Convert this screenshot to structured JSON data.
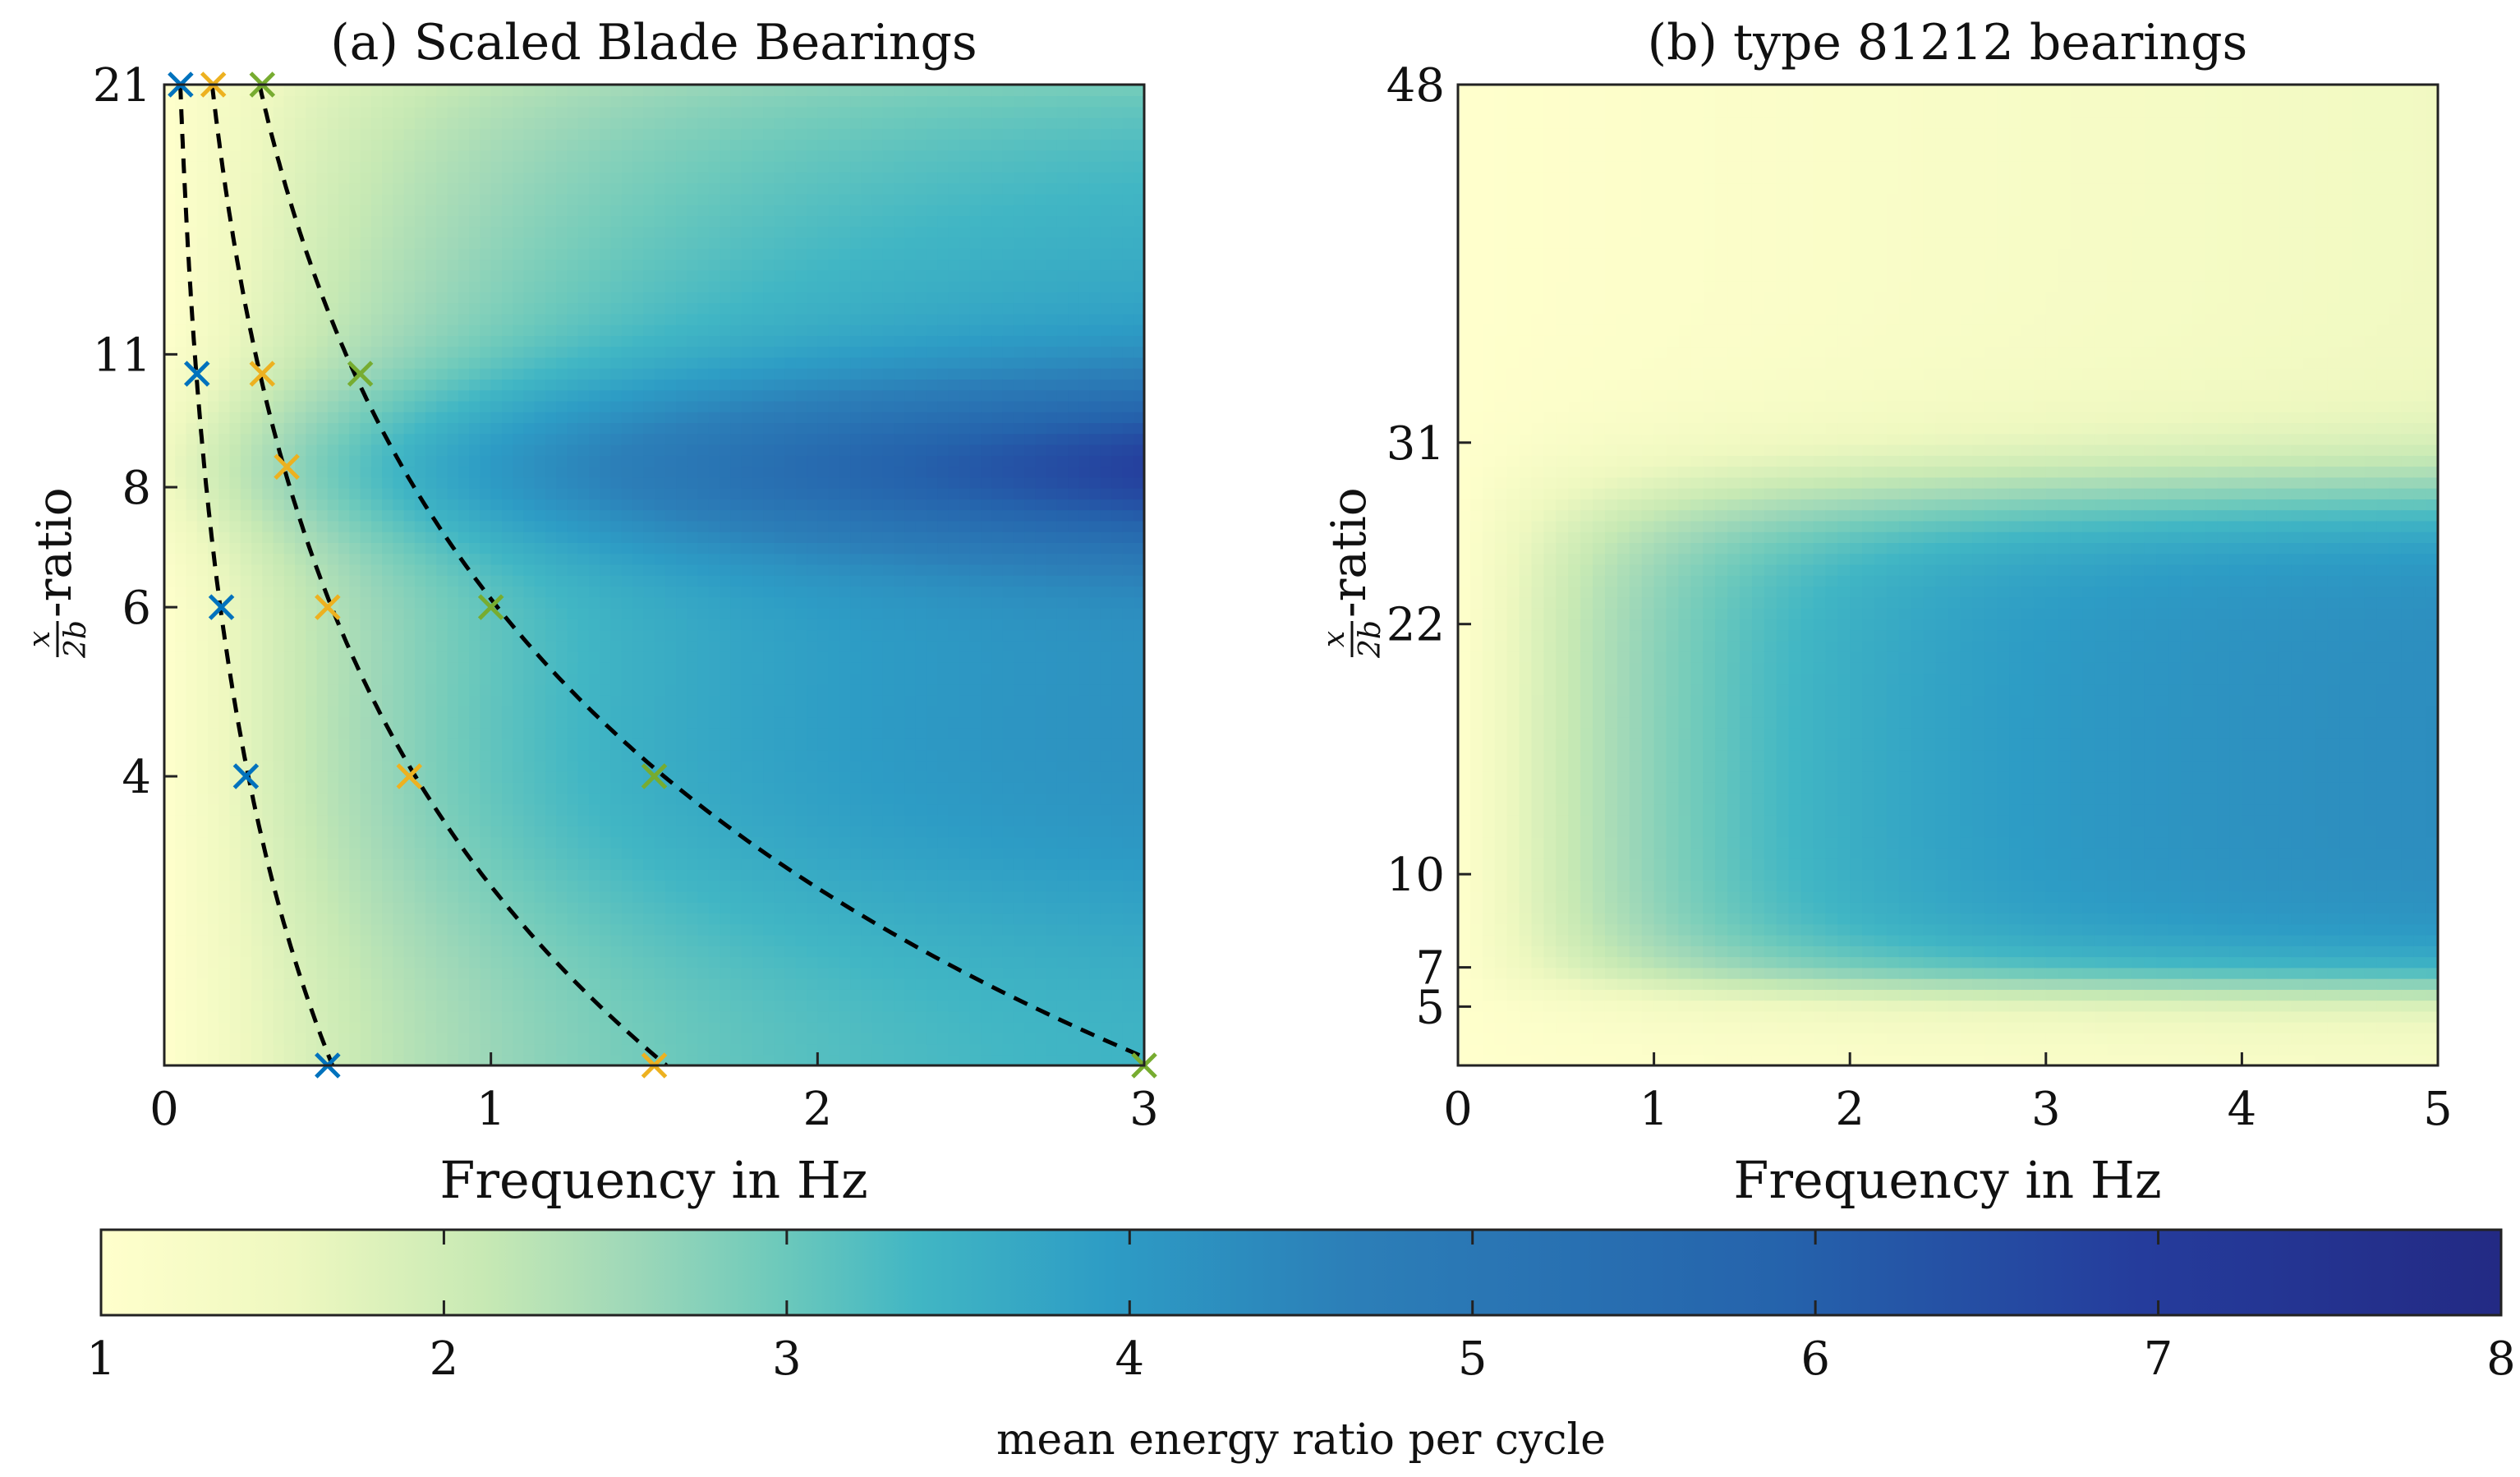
{
  "colorscale": {
    "stops": [
      [
        0.0,
        "#ffffcc"
      ],
      [
        0.08,
        "#eef8c0"
      ],
      [
        0.16,
        "#c7e9b4"
      ],
      [
        0.22,
        "#9fd8b8"
      ],
      [
        0.28,
        "#6fcabb"
      ],
      [
        0.34,
        "#41b6c4"
      ],
      [
        0.42,
        "#2d9cc5"
      ],
      [
        0.52,
        "#2c7fb8"
      ],
      [
        0.7,
        "#2563ac"
      ],
      [
        0.85,
        "#253c9c"
      ],
      [
        1.0,
        "#232a84"
      ]
    ]
  },
  "colorbar": {
    "label": "mean energy ratio per cycle",
    "min": 1,
    "max": 8,
    "ticks": [
      1,
      2,
      3,
      4,
      5,
      6,
      7,
      8
    ],
    "tick_labels": [
      "1",
      "2",
      "3",
      "4",
      "5",
      "6",
      "7",
      "8"
    ]
  },
  "chart_data": [
    {
      "panel": "a",
      "type": "heatmap",
      "title": "(a) Scaled Blade Bearings",
      "xlabel": "Frequency in Hz",
      "ylabel": "x/2b-ratio",
      "ylabel_parts": {
        "num": "x",
        "den": "2b",
        "suffix": "-ratio"
      },
      "xlim": [
        0,
        3
      ],
      "ylim": [
        2,
        21
      ],
      "x_ticks": [
        0,
        1,
        2,
        3
      ],
      "x_tick_labels": [
        "0",
        "1",
        "2",
        "3"
      ],
      "y_ticks": [
        4,
        6,
        8,
        11,
        21
      ],
      "y_tick_labels": [
        "4",
        "6",
        "8",
        "11",
        "21"
      ],
      "y_scale": "log",
      "curves": [
        {
          "name": "blue",
          "color": "#0072bd",
          "x": [
            0.05,
            0.1,
            0.175,
            0.25,
            0.5
          ],
          "y": [
            21,
            10.5,
            6,
            4,
            2
          ]
        },
        {
          "name": "orange",
          "color": "#edb120",
          "x": [
            0.15,
            0.3,
            0.375,
            0.5,
            0.75,
            1.5
          ],
          "y": [
            21,
            10.5,
            8.4,
            6,
            4,
            2
          ]
        },
        {
          "name": "green",
          "color": "#77ac30",
          "x": [
            0.3,
            0.6,
            1.0,
            1.5,
            3.0
          ],
          "y": [
            21,
            10.5,
            6,
            4,
            2
          ]
        }
      ],
      "field_description": "energy ratio low near zero frequency, peak about 7.6 near x/2b 8.4 at 3 Hz"
    },
    {
      "panel": "b",
      "type": "heatmap",
      "title": "(b) type 81212 bearings",
      "xlabel": "Frequency in Hz",
      "ylabel": "x/2b-ratio",
      "ylabel_parts": {
        "num": "x",
        "den": "2b",
        "suffix": "-ratio"
      },
      "xlim": [
        0,
        5
      ],
      "ylim": [
        3,
        48
      ],
      "x_ticks": [
        0,
        1,
        2,
        3,
        4,
        5
      ],
      "x_tick_labels": [
        "0",
        "1",
        "2",
        "3",
        "4",
        "5"
      ],
      "y_ticks": [
        5,
        7,
        10,
        22,
        31,
        48
      ],
      "y_tick_labels": [
        "5",
        "7",
        "10",
        "22",
        "31",
        "48"
      ],
      "y_scale": "piecewise-linear",
      "field_description": "energy ratio rises with frequency between x/2b 7 and 28, about 4.5 at 5 Hz"
    }
  ]
}
